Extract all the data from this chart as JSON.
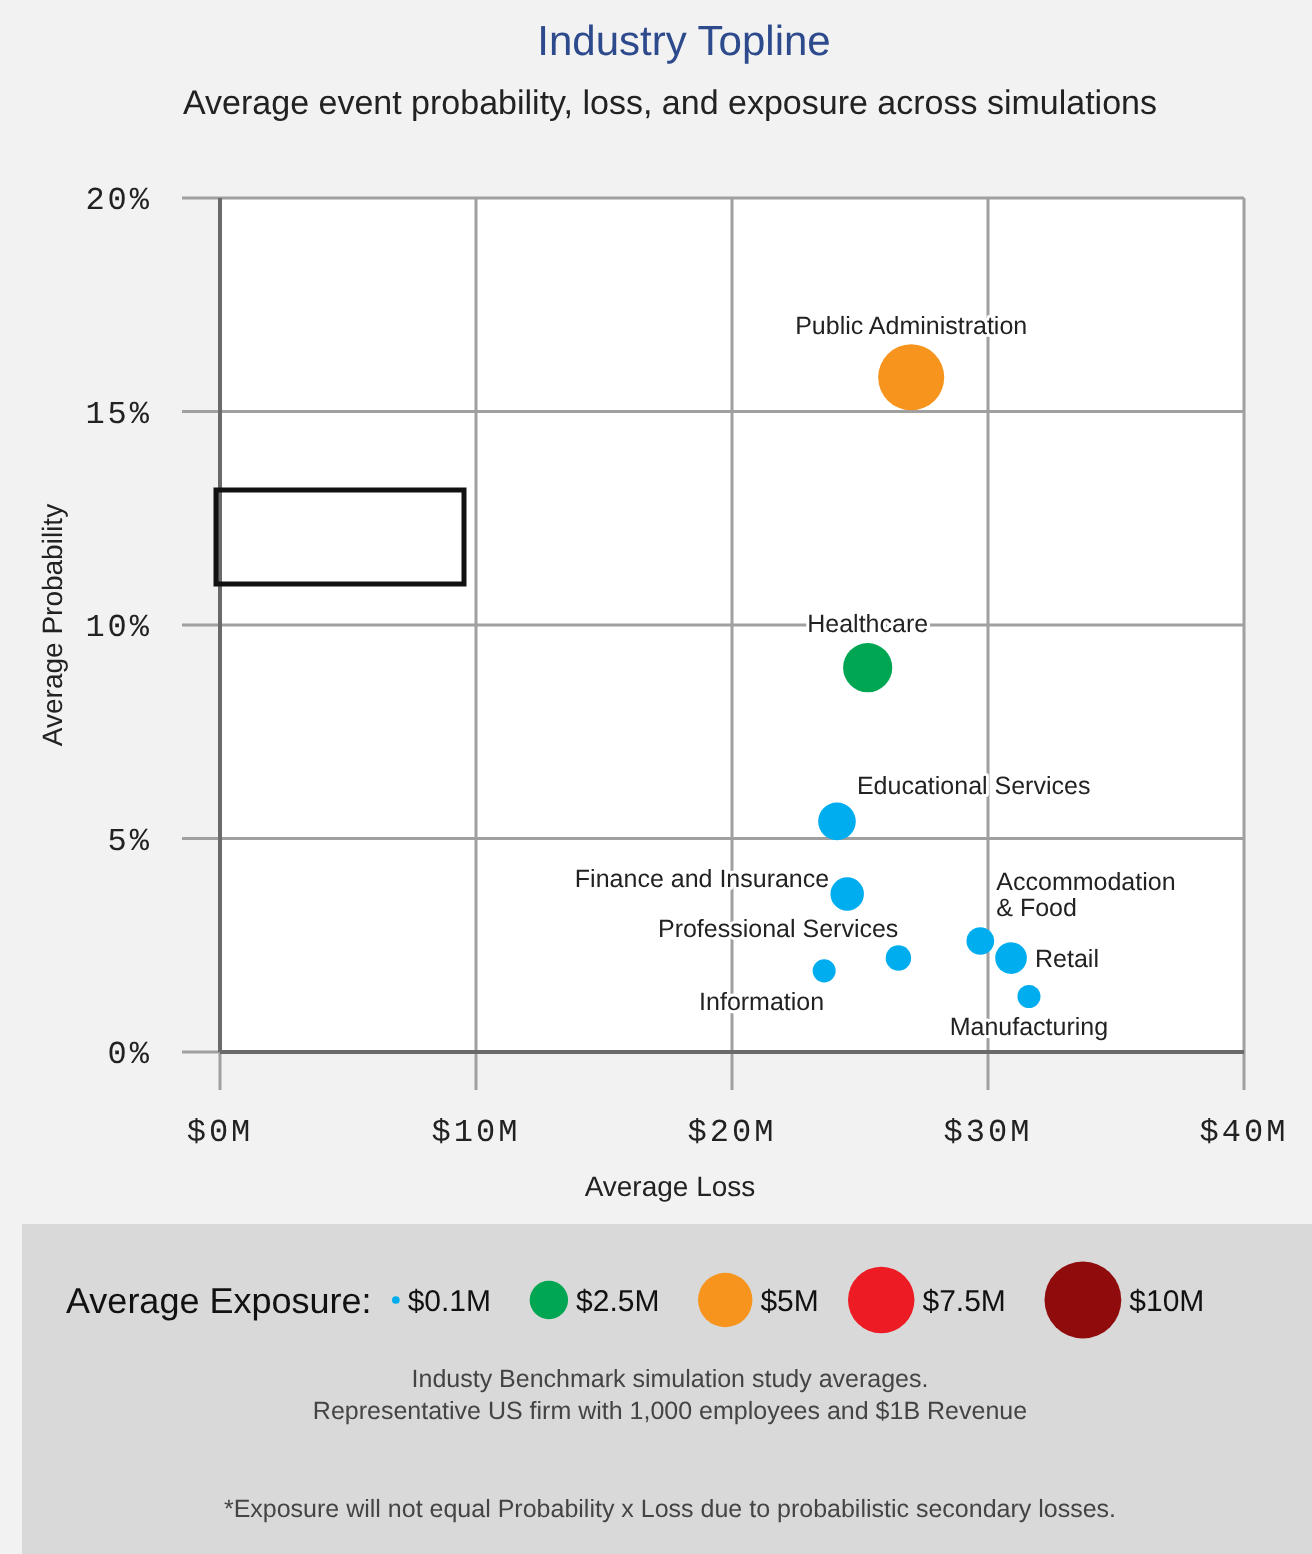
{
  "chart_data": {
    "type": "bubble",
    "title": "Industry Topline",
    "subtitle": "Average event probability, loss, and exposure across simulations",
    "xlabel": "Average Loss",
    "ylabel": "Average Probability",
    "legend_title": "Average Exposure:",
    "x": [
      27.0,
      25.3,
      24.1,
      24.5,
      26.5,
      23.6,
      29.7,
      30.9,
      31.6
    ],
    "values": [
      15.8,
      9.0,
      5.4,
      3.7,
      2.2,
      1.9,
      2.6,
      2.2,
      1.3
    ],
    "sizes": [
      7.4,
      4.1,
      2.4,
      1.9,
      1.1,
      0.9,
      1.3,
      1.7,
      0.9
    ],
    "colors": [
      "#f7941d",
      "#00a651",
      "#00aeef",
      "#00aeef",
      "#00aeef",
      "#00aeef",
      "#00aeef",
      "#00aeef",
      "#00aeef"
    ],
    "size_legend": [
      {
        "value": 0.1,
        "label": "$0.1M"
      },
      {
        "value": 2.5,
        "label": "$2.5M"
      },
      {
        "value": 5,
        "label": "$5M"
      },
      {
        "value": 7.5,
        "label": "$7.5M"
      },
      {
        "value": 10,
        "label": "$10M"
      }
    ],
    "xlim": [
      0,
      40
    ],
    "xticks": [
      {
        "value": 0,
        "label": "$0M"
      },
      {
        "value": 10,
        "label": "$10M"
      },
      {
        "value": 20,
        "label": "$20M"
      },
      {
        "value": 30,
        "label": "$30M"
      },
      {
        "value": 40,
        "label": "$40M"
      }
    ],
    "ylim": [
      0,
      20
    ],
    "yticks": [
      {
        "value": 0,
        "label": "0%"
      },
      {
        "value": 5,
        "label": "5%"
      },
      {
        "value": 10,
        "label": "10%"
      },
      {
        "value": 15,
        "label": "15%"
      },
      {
        "value": 20,
        "label": "20%"
      }
    ],
    "grid": true,
    "marker": "circle",
    "annotations": [
      {
        "text": "Public Administration",
        "x": 27.0,
        "y": 15.8
      },
      {
        "text": "Healthcare",
        "x": 25.3,
        "y": 9.0
      },
      {
        "text": "Educational Services",
        "x": 24.1,
        "y": 5.4
      },
      {
        "text": "Finance and Insurance",
        "x": 24.5,
        "y": 3.7
      },
      {
        "text": "Professional Services",
        "x": 26.5,
        "y": 2.2
      },
      {
        "text": "Information",
        "x": 23.6,
        "y": 1.9
      },
      {
        "text": "Accommodation\n& Food",
        "x": 29.7,
        "y": 2.6
      },
      {
        "text": "Retail",
        "x": 30.9,
        "y": 2.2
      },
      {
        "text": "Manufacturing",
        "x": 31.6,
        "y": 1.3
      },
      "Industy Benchmark simulation study averages.",
      "Representative US firm with 1,000 employees and $1B Revenue",
      "*Exposure will not equal Probability x Loss due to probabilistic secondary losses."
    ]
  }
}
